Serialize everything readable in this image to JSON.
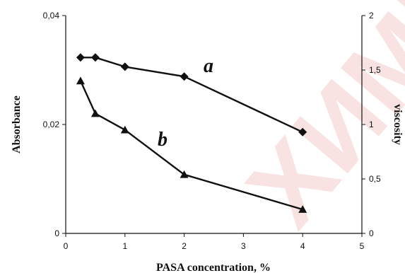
{
  "chart_data": {
    "type": "line",
    "title": "",
    "xlabel": "PASA concentration, %",
    "ylabel_left": "Absorbance",
    "ylabel_right": "viscosity",
    "xlim": [
      0,
      5
    ],
    "ylim_left": [
      0,
      0.04
    ],
    "ylim_right": [
      0,
      2
    ],
    "x_ticks": [
      {
        "value": 0,
        "label": "0"
      },
      {
        "value": 1,
        "label": "1"
      },
      {
        "value": 2,
        "label": "2"
      },
      {
        "value": 3,
        "label": "3"
      },
      {
        "value": 4,
        "label": "4"
      },
      {
        "value": 5,
        "label": "5"
      }
    ],
    "y_left_ticks": [
      {
        "value": 0,
        "label": "0"
      },
      {
        "value": 0.02,
        "label": "0,02"
      },
      {
        "value": 0.04,
        "label": "0,04"
      }
    ],
    "y_right_ticks": [
      {
        "value": 0,
        "label": "0"
      },
      {
        "value": 0.5,
        "label": "0,5"
      },
      {
        "value": 1,
        "label": "1"
      },
      {
        "value": 1.5,
        "label": "1,5"
      },
      {
        "value": 2,
        "label": "2"
      }
    ],
    "series": [
      {
        "label": "a",
        "axis": "left",
        "marker": "diamond",
        "x": [
          0.25,
          0.5,
          1,
          2,
          4
        ],
        "y": [
          0.0323,
          0.0323,
          0.0306,
          0.0288,
          0.0186
        ]
      },
      {
        "label": "b",
        "axis": "right",
        "marker": "triangle",
        "x": [
          0.25,
          0.5,
          1,
          2,
          4
        ],
        "y": [
          1.4,
          1.1,
          0.95,
          0.54,
          0.22
        ]
      }
    ],
    "grid": false,
    "legend": "none"
  },
  "watermark_text": "ХИМИЯ"
}
